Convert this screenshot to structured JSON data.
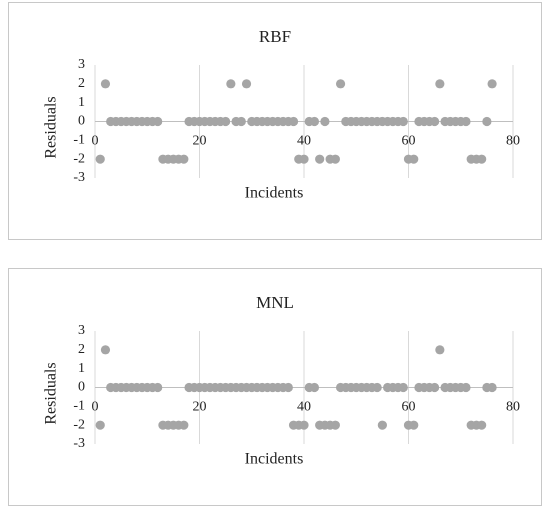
{
  "chart_data": [
    {
      "type": "scatter",
      "title": "RBF",
      "xlabel": "Incidents",
      "ylabel": "Residuals",
      "color": "#a5a5a5",
      "xlim": [
        0,
        80
      ],
      "ylim": [
        -3,
        3
      ],
      "xticks": [
        0,
        20,
        40,
        60,
        80
      ],
      "yticks": [
        -3,
        -2,
        -1,
        0,
        1,
        2,
        3
      ],
      "grid": true,
      "x": [
        1,
        2,
        3,
        4,
        5,
        6,
        7,
        8,
        9,
        10,
        11,
        12,
        13,
        14,
        15,
        16,
        17,
        18,
        19,
        20,
        21,
        22,
        23,
        24,
        25,
        26,
        27,
        28,
        29,
        30,
        31,
        32,
        33,
        34,
        35,
        36,
        37,
        38,
        39,
        40,
        41,
        42,
        43,
        44,
        45,
        46,
        47,
        48,
        49,
        50,
        51,
        52,
        53,
        54,
        55,
        56,
        57,
        58,
        59,
        60,
        61,
        62,
        63,
        64,
        65,
        66,
        67,
        68,
        69,
        70,
        71,
        72,
        73,
        74,
        75,
        76
      ],
      "y": [
        -2,
        2,
        0,
        0,
        0,
        0,
        0,
        0,
        0,
        0,
        0,
        0,
        -2,
        -2,
        -2,
        -2,
        -2,
        0,
        0,
        0,
        0,
        0,
        0,
        0,
        0,
        2,
        0,
        0,
        2,
        0,
        0,
        0,
        0,
        0,
        0,
        0,
        0,
        0,
        -2,
        -2,
        0,
        0,
        -2,
        0,
        -2,
        -2,
        2,
        0,
        0,
        0,
        0,
        0,
        0,
        0,
        0,
        0,
        0,
        0,
        0,
        -2,
        -2,
        0,
        0,
        0,
        0,
        2,
        0,
        0,
        0,
        0,
        0,
        -2,
        -2,
        -2,
        0,
        2
      ]
    },
    {
      "type": "scatter",
      "title": "MNL",
      "xlabel": "Incidents",
      "ylabel": "Residuals",
      "color": "#a5a5a5",
      "xlim": [
        0,
        80
      ],
      "ylim": [
        -3,
        3
      ],
      "xticks": [
        0,
        20,
        40,
        60,
        80
      ],
      "yticks": [
        -3,
        -2,
        -1,
        0,
        1,
        2,
        3
      ],
      "grid": true,
      "x": [
        1,
        2,
        3,
        4,
        5,
        6,
        7,
        8,
        9,
        10,
        11,
        12,
        13,
        14,
        15,
        16,
        17,
        18,
        19,
        20,
        21,
        22,
        23,
        24,
        25,
        26,
        27,
        28,
        29,
        30,
        31,
        32,
        33,
        34,
        35,
        36,
        37,
        38,
        39,
        40,
        41,
        42,
        43,
        44,
        45,
        46,
        47,
        48,
        49,
        50,
        51,
        52,
        53,
        54,
        55,
        56,
        57,
        58,
        59,
        60,
        61,
        62,
        63,
        64,
        65,
        66,
        67,
        68,
        69,
        70,
        71,
        72,
        73,
        74,
        75,
        76
      ],
      "y": [
        -2,
        2,
        0,
        0,
        0,
        0,
        0,
        0,
        0,
        0,
        0,
        0,
        -2,
        -2,
        -2,
        -2,
        -2,
        0,
        0,
        0,
        0,
        0,
        0,
        0,
        0,
        0,
        0,
        0,
        0,
        0,
        0,
        0,
        0,
        0,
        0,
        0,
        0,
        -2,
        -2,
        -2,
        0,
        0,
        -2,
        -2,
        -2,
        -2,
        0,
        0,
        0,
        0,
        0,
        0,
        0,
        0,
        -2,
        0,
        0,
        0,
        0,
        -2,
        -2,
        0,
        0,
        0,
        0,
        2,
        0,
        0,
        0,
        0,
        0,
        -2,
        -2,
        -2,
        0,
        0
      ]
    }
  ]
}
